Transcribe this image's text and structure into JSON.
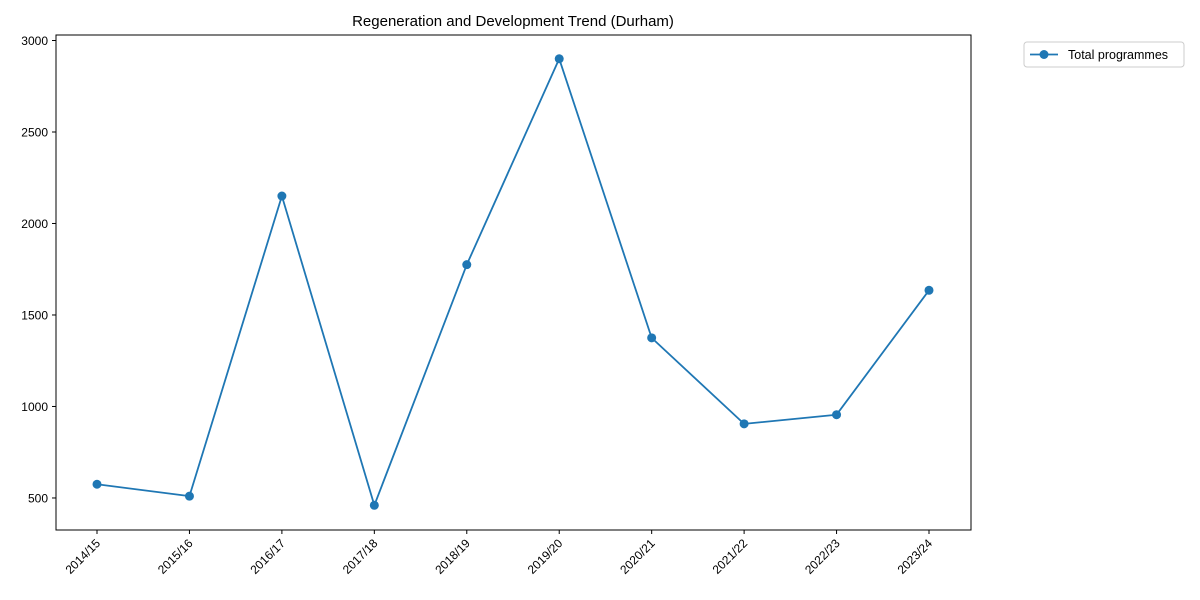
{
  "chart_data": {
    "type": "line",
    "title": "Regeneration and Development Trend (Durham)",
    "xlabel": "",
    "ylabel": "",
    "categories": [
      "2014/15",
      "2015/16",
      "2016/17",
      "2017/18",
      "2018/19",
      "2019/20",
      "2020/21",
      "2021/22",
      "2022/23",
      "2023/24"
    ],
    "series": [
      {
        "name": "Total programmes",
        "color": "#1f77b4",
        "marker": "circle",
        "values": [
          575,
          510,
          2150,
          460,
          1775,
          2900,
          1375,
          905,
          955,
          1635
        ]
      }
    ],
    "ylim": [
      325,
      3030
    ],
    "yticks": [
      500,
      1000,
      1500,
      2000,
      2500,
      3000
    ],
    "x_tick_rotation_deg": 45,
    "grid": false,
    "legend_position": "outside-top-right"
  }
}
